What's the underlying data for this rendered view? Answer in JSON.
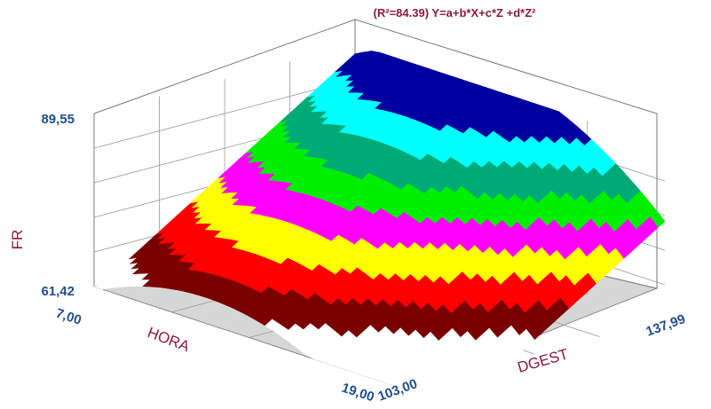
{
  "chart_data": {
    "type": "surface3d",
    "title": "(R²=84.39) Y=a+b*X+c*Z +d*Z²",
    "xlabel": "DGEST",
    "ylabel": "HORA",
    "zlabel": "FR",
    "x_ticks": [
      "103,00",
      "137,99"
    ],
    "y_ticks": [
      "7,00",
      "19,00"
    ],
    "z_ticks": [
      "61,42",
      "89,55"
    ],
    "xlim": [
      103.0,
      137.99
    ],
    "ylim": [
      7.0,
      19.0
    ],
    "zlim": [
      61.42,
      89.55
    ],
    "model": {
      "equation": "Y=a+b*X+c*Z +d*Z²",
      "r_squared": 84.39
    },
    "surface_samples": {
      "corner_low_x_low_y": 61.9,
      "corner_low_x_high_y": 62.2,
      "corner_high_x_low_y": 88.6,
      "peak_near_high_x_mid_y": 89.55
    },
    "colormap": [
      "#ffffff",
      "#7a0000",
      "#ff0000",
      "#ffff00",
      "#ff00ff",
      "#00ee00",
      "#00aa77",
      "#00ffff",
      "#0000a0"
    ],
    "grid": true
  }
}
